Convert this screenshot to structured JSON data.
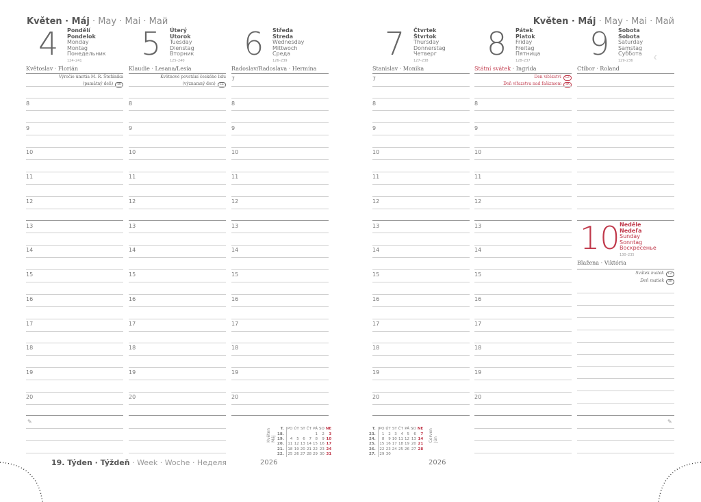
{
  "header_left": {
    "bold": "Květen · Máj",
    "rest": " · May · Mai · Май"
  },
  "header_right": {
    "bold": "Květen · Máj",
    "rest": " · May · Mai · Май"
  },
  "days": [
    {
      "num": "4",
      "cz": "Pondělí",
      "sk": "Pondelok",
      "en": "Monday",
      "de": "Montag",
      "ru": "Понедельник",
      "count": "124–241",
      "names": "Květoslav · Florián",
      "first_hour": 8,
      "notes": [
        {
          "text": "Výročie úmrtia M. R. Štefánika",
          "badge": ""
        },
        {
          "text": "(pamätný deň)",
          "badge": "SK"
        }
      ]
    },
    {
      "num": "5",
      "cz": "Úterý",
      "sk": "Utorok",
      "en": "Tuesday",
      "de": "Dienstag",
      "ru": "Вторник",
      "count": "125–240",
      "names": "Klaudie · Lesana/Lesia",
      "first_hour": 8,
      "notes": [
        {
          "text": "Květnové povstání českého lidu",
          "badge": ""
        },
        {
          "text": "(významný den)",
          "badge": "CZ"
        }
      ]
    },
    {
      "num": "6",
      "cz": "Středa",
      "sk": "Streda",
      "en": "Wednesday",
      "de": "Mittwoch",
      "ru": "Среда",
      "count": "126–239",
      "names": "Radoslav/Radoslava · Hermína",
      "first_hour": 7,
      "notes": []
    },
    {
      "num": "7",
      "cz": "Čtvrtek",
      "sk": "Štvrtok",
      "en": "Thursday",
      "de": "Donnerstag",
      "ru": "Четверг",
      "count": "127–238",
      "names": "Stanislav · Monika",
      "first_hour": 7,
      "notes": []
    },
    {
      "num": "8",
      "cz": "Pátek",
      "sk": "Piatok",
      "en": "Friday",
      "de": "Freitag",
      "ru": "Пятница",
      "count": "128–237",
      "names_red": "Státní svátek",
      "names": " · Ingrida",
      "first_hour": 8,
      "notes_red": true,
      "notes": [
        {
          "text": "Den vítězství",
          "badge": "CZ"
        },
        {
          "text": "Deň víťazstva nad fašizmom",
          "badge": "SK"
        }
      ]
    },
    {
      "num": "9",
      "cz": "Sobota",
      "sk": "Sobota",
      "en": "Saturday",
      "de": "Samstag",
      "ru": "Суббота",
      "count": "129–236",
      "names": "Ctibor · Roland",
      "moon": "☾",
      "first_hour": null,
      "notes": []
    }
  ],
  "sunday": {
    "num": "10",
    "cz": "Neděle",
    "sk": "Nedeľa",
    "en": "Sunday",
    "de": "Sonntag",
    "ru": "Воскресенье",
    "count": "130–235",
    "names": "Blažena · Viktória",
    "notes": [
      {
        "text": "Svátek matek",
        "badge": "CZ"
      },
      {
        "text": "Deň matiek",
        "badge": "SK"
      }
    ]
  },
  "hours": [
    7,
    8,
    9,
    10,
    11,
    12,
    13,
    14,
    15,
    16,
    17,
    18,
    19,
    20
  ],
  "week": {
    "bold": "19. Týden · Týždeň",
    "rest": " · Week · Woche · Неделя"
  },
  "minical_may": {
    "label": "Květen",
    "label2": "Máj",
    "year": "2026",
    "header": [
      "T.",
      "PO",
      "ÚT",
      "ST",
      "ČT",
      "PÁ",
      "SO",
      "NE"
    ],
    "rows": [
      [
        "18.",
        "",
        "",
        "",
        "",
        "1",
        "2",
        "3"
      ],
      [
        "19.",
        "4",
        "5",
        "6",
        "7",
        "8",
        "9",
        "10"
      ],
      [
        "20.",
        "11",
        "12",
        "13",
        "14",
        "15",
        "16",
        "17"
      ],
      [
        "21.",
        "18",
        "19",
        "20",
        "21",
        "22",
        "23",
        "24"
      ],
      [
        "22.",
        "25",
        "26",
        "27",
        "28",
        "29",
        "30",
        "31"
      ]
    ]
  },
  "minical_june": {
    "label": "Červen",
    "label2": "Jún",
    "year": "2026",
    "header": [
      "T.",
      "PO",
      "ÚT",
      "ST",
      "ČT",
      "PÁ",
      "SO",
      "NE"
    ],
    "rows": [
      [
        "23.",
        "1",
        "2",
        "3",
        "4",
        "5",
        "6",
        "7"
      ],
      [
        "24.",
        "8",
        "9",
        "10",
        "11",
        "12",
        "13",
        "14"
      ],
      [
        "25.",
        "15",
        "16",
        "17",
        "18",
        "19",
        "20",
        "21"
      ],
      [
        "26.",
        "22",
        "23",
        "24",
        "25",
        "26",
        "27",
        "28"
      ],
      [
        "27.",
        "29",
        "30",
        "",
        "",
        "",
        "",
        ""
      ]
    ]
  },
  "colors": {
    "accent": "#c0394b",
    "text": "#6b6b6b"
  }
}
